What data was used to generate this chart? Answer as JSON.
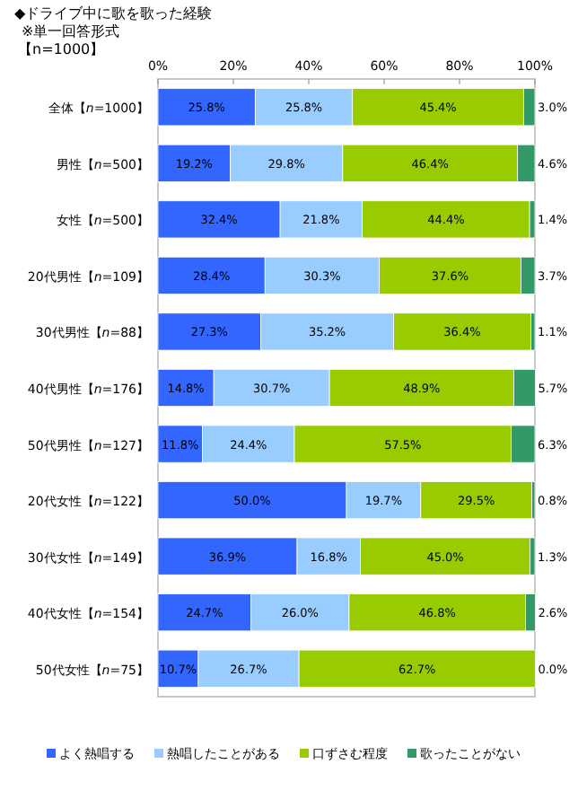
{
  "chart_data": {
    "type": "bar",
    "orientation": "horizontal",
    "stacked": true,
    "title": "◆ドライブ中に歌を歌った経験",
    "subtitle": "※単一回答形式",
    "annotations": [
      "【n=1000】"
    ],
    "categories": [
      "全体【*n*=1000】",
      "男性【*n*=500】",
      "女性【*n*=500】",
      "20代男性【*n*=109】",
      "30代男性【*n*=88】",
      "40代男性【*n*=176】",
      "50代男性【*n*=127】",
      "20代女性【*n*=122】",
      "30代女性【*n*=149】",
      "40代女性【*n*=154】",
      "50代女性【*n*=75】"
    ],
    "series": [
      {
        "name": "よく熱唱する",
        "color": "#3366ff",
        "values": [
          25.8,
          19.2,
          32.4,
          28.4,
          27.3,
          14.8,
          11.8,
          50.0,
          36.9,
          24.7,
          10.7
        ],
        "value_labels": [
          "25.8%",
          "19.2%",
          "32.4%",
          "28.4%",
          "27.3%",
          "14.8%",
          "11.8%",
          "50.0%",
          "36.9%",
          "24.7%",
          "10.7%"
        ]
      },
      {
        "name": "熱唱したことがある",
        "color": "#99ccff",
        "values": [
          25.8,
          29.8,
          21.8,
          30.3,
          35.2,
          30.7,
          24.4,
          19.7,
          16.8,
          26.0,
          26.7
        ],
        "value_labels": [
          "25.8%",
          "29.8%",
          "21.8%",
          "30.3%",
          "35.2%",
          "30.7%",
          "24.4%",
          "19.7%",
          "16.8%",
          "26.0%",
          "26.7%"
        ]
      },
      {
        "name": "口ずさむ程度",
        "color": "#99cc00",
        "values": [
          45.4,
          46.4,
          44.4,
          37.6,
          36.4,
          48.9,
          57.5,
          29.5,
          45.0,
          46.8,
          62.7
        ],
        "value_labels": [
          "45.4%",
          "46.4%",
          "44.4%",
          "37.6%",
          "36.4%",
          "48.9%",
          "57.5%",
          "29.5%",
          "45.0%",
          "46.8%",
          "62.7%"
        ]
      },
      {
        "name": "歌ったことがない",
        "color": "#339966",
        "values": [
          3.0,
          4.6,
          1.4,
          3.7,
          1.1,
          5.7,
          6.3,
          0.8,
          1.3,
          2.6,
          0.0
        ],
        "value_labels": [
          "3.0%",
          "4.6%",
          "1.4%",
          "3.7%",
          "1.1%",
          "5.7%",
          "6.3%",
          "0.8%",
          "1.3%",
          "2.6%",
          "0.0%"
        ]
      }
    ],
    "xlim": [
      0,
      100
    ],
    "xticks": [
      {
        "value": 0,
        "label": "0%"
      },
      {
        "value": 20,
        "label": "20%"
      },
      {
        "value": 40,
        "label": "40%"
      },
      {
        "value": 60,
        "label": "60%"
      },
      {
        "value": 80,
        "label": "80%"
      },
      {
        "value": 100,
        "label": "100%"
      }
    ],
    "grid": false,
    "legend": "bottom"
  }
}
